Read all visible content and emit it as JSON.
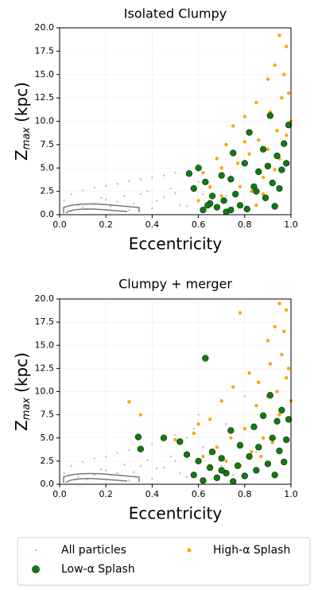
{
  "chart_data": [
    {
      "type": "scatter",
      "title": "Isolated Clumpy",
      "x_label": "Eccentricity",
      "y_label": {
        "main": "Z",
        "sub": "max",
        "unit": "(kpc)"
      },
      "xlim": [
        0,
        1
      ],
      "xticks": [
        {
          "value": 0,
          "label": "0.0"
        },
        0.2,
        0.4,
        0.6,
        0.8,
        {
          "value": 1,
          "label": "1.0"
        }
      ],
      "ylim": [
        0,
        20
      ],
      "yticks": [
        {
          "value": 0,
          "label": "0.0"
        },
        2.5,
        {
          "value": 5,
          "label": "5.0"
        },
        7.5,
        {
          "value": 10,
          "label": "10.0"
        },
        12.5,
        {
          "value": 15,
          "label": "15.0"
        },
        17.5,
        {
          "value": 20,
          "label": "20.0"
        }
      ],
      "grid": true,
      "series": [
        {
          "name": "All particles",
          "color": "#c8c8c8",
          "x": [
            0.02,
            0.05,
            0.08,
            0.1,
            0.12,
            0.15,
            0.18,
            0.2,
            0.22,
            0.25,
            0.28,
            0.3,
            0.32,
            0.35,
            0.38,
            0.4,
            0.42,
            0.45,
            0.48,
            0.5,
            0.52,
            0.55,
            0.58,
            0.6,
            0.62,
            0.65,
            0.7,
            0.72,
            0.75,
            0.05,
            0.1,
            0.15,
            0.2,
            0.25,
            0.3,
            0.35,
            0.4,
            0.45,
            0.5,
            0.55
          ],
          "y": [
            1.5,
            2.2,
            1.0,
            2.6,
            0.6,
            2.9,
            1.8,
            3.1,
            0.9,
            3.3,
            2.0,
            3.6,
            1.2,
            3.8,
            2.5,
            4.0,
            1.5,
            4.2,
            2.8,
            4.5,
            1.0,
            4.3,
            3.0,
            3.5,
            2.2,
            2.8,
            1.6,
            2.0,
            0.8,
            0.4,
            0.8,
            1.2,
            1.6,
            1.4,
            0.5,
            2.2,
            0.7,
            1.9,
            2.3,
            0.9
          ]
        },
        {
          "name": "Low-α Splash",
          "color": "#137a13",
          "x": [
            0.56,
            0.58,
            0.6,
            0.62,
            0.63,
            0.65,
            0.66,
            0.68,
            0.7,
            0.71,
            0.72,
            0.74,
            0.75,
            0.76,
            0.78,
            0.8,
            0.81,
            0.82,
            0.84,
            0.85,
            0.86,
            0.88,
            0.89,
            0.9,
            0.91,
            0.92,
            0.93,
            0.94,
            0.95,
            0.96,
            0.97,
            0.98,
            0.99,
            0.64,
            0.74
          ],
          "y": [
            4.4,
            2.8,
            5.0,
            0.5,
            3.5,
            1.2,
            2.0,
            0.8,
            4.2,
            1.5,
            0.3,
            3.8,
            6.6,
            2.2,
            1.0,
            5.5,
            0.6,
            8.8,
            3.0,
            2.5,
            4.6,
            7.0,
            1.8,
            5.2,
            10.6,
            3.4,
            0.9,
            6.3,
            2.8,
            4.8,
            7.6,
            5.5,
            9.6,
            1.0,
            0.5
          ]
        },
        {
          "name": "High-α Splash",
          "color": "#ffa500",
          "x": [
            0.6,
            0.62,
            0.65,
            0.68,
            0.7,
            0.72,
            0.74,
            0.75,
            0.77,
            0.78,
            0.8,
            0.82,
            0.83,
            0.85,
            0.86,
            0.88,
            0.9,
            0.9,
            0.91,
            0.92,
            0.93,
            0.94,
            0.95,
            0.95,
            0.96,
            0.97,
            0.98,
            0.98,
            0.99,
            1.0,
            0.85,
            0.8,
            0.7,
            0.88,
            0.93
          ],
          "y": [
            1.5,
            4.5,
            3.0,
            6.0,
            2.0,
            7.5,
            4.0,
            9.5,
            5.5,
            3.0,
            10.5,
            6.5,
            2.5,
            12.0,
            8.0,
            4.0,
            14.5,
            7.0,
            11.0,
            3.5,
            16.0,
            9.0,
            19.2,
            6.0,
            12.5,
            15.0,
            8.5,
            18.0,
            13.0,
            10.0,
            1.0,
            7.8,
            5.0,
            2.2,
            4.8
          ]
        }
      ]
    },
    {
      "type": "scatter",
      "title": "Clumpy + merger",
      "x_label": "Eccentricity",
      "y_label": {
        "main": "Z",
        "sub": "max",
        "unit": "(kpc)"
      },
      "xlim": [
        0,
        1
      ],
      "xticks": [
        {
          "value": 0,
          "label": "0.0"
        },
        0.2,
        0.4,
        0.6,
        0.8,
        {
          "value": 1,
          "label": "1.0"
        }
      ],
      "ylim": [
        0,
        20
      ],
      "yticks": [
        {
          "value": 0,
          "label": "0.0"
        },
        2.5,
        {
          "value": 5,
          "label": "5.0"
        },
        7.5,
        {
          "value": 10,
          "label": "10.0"
        },
        12.5,
        {
          "value": 15,
          "label": "15.0"
        },
        17.5,
        {
          "value": 20,
          "label": "20.0"
        }
      ],
      "grid": true,
      "series": [
        {
          "color": "#c8c8c8",
          "x": [
            0.02,
            0.05,
            0.08,
            0.1,
            0.12,
            0.15,
            0.18,
            0.2,
            0.22,
            0.25,
            0.28,
            0.3,
            0.32,
            0.35,
            0.38,
            0.4,
            0.42,
            0.45,
            0.48,
            0.5,
            0.52,
            0.55,
            0.58,
            0.6,
            0.62,
            0.65,
            0.7,
            0.72,
            0.75,
            0.8,
            0.85,
            0.15,
            0.2,
            0.25,
            0.3,
            0.35,
            0.4,
            0.45,
            0.5,
            0.55
          ],
          "y": [
            1.2,
            2.0,
            0.8,
            2.4,
            0.5,
            2.8,
            1.6,
            3.0,
            1.0,
            3.4,
            2.1,
            3.7,
            1.3,
            4.0,
            2.6,
            4.4,
            1.7,
            4.8,
            3.0,
            5.3,
            1.2,
            5.0,
            6.0,
            7.5,
            4.0,
            3.2,
            2.0,
            6.5,
            1.0,
            9.5,
            3.5,
            1.0,
            1.5,
            1.2,
            0.4,
            2.0,
            0.6,
            1.8,
            2.5,
            0.8
          ]
        },
        {
          "color": "#137a13",
          "x": [
            0.34,
            0.35,
            0.45,
            0.52,
            0.55,
            0.58,
            0.6,
            0.62,
            0.63,
            0.65,
            0.66,
            0.68,
            0.7,
            0.72,
            0.74,
            0.75,
            0.77,
            0.78,
            0.8,
            0.82,
            0.84,
            0.85,
            0.86,
            0.88,
            0.9,
            0.91,
            0.92,
            0.93,
            0.94,
            0.95,
            0.96,
            0.97,
            0.98,
            0.99,
            0.7
          ],
          "y": [
            5.1,
            3.8,
            5.0,
            4.6,
            3.2,
            1.0,
            2.5,
            0.4,
            13.6,
            1.8,
            3.5,
            0.7,
            2.8,
            1.2,
            5.8,
            0.3,
            2.0,
            4.2,
            0.9,
            3.0,
            6.2,
            1.5,
            4.0,
            7.4,
            2.2,
            9.6,
            5.0,
            1.0,
            6.8,
            3.6,
            8.0,
            2.4,
            4.8,
            7.0,
            1.5
          ]
        },
        {
          "color": "#ffa500",
          "x": [
            0.3,
            0.35,
            0.5,
            0.58,
            0.6,
            0.62,
            0.65,
            0.68,
            0.7,
            0.72,
            0.74,
            0.75,
            0.78,
            0.8,
            0.82,
            0.83,
            0.85,
            0.86,
            0.88,
            0.9,
            0.9,
            0.91,
            0.92,
            0.93,
            0.94,
            0.95,
            0.95,
            0.96,
            0.97,
            0.98,
            0.98,
            0.99,
            1.0,
            0.78,
            0.87
          ],
          "y": [
            8.9,
            7.5,
            4.8,
            5.5,
            6.5,
            3.0,
            7.0,
            4.0,
            9.0,
            2.5,
            5.0,
            10.5,
            18.5,
            6.0,
            12.0,
            3.5,
            8.5,
            11.0,
            5.0,
            15.5,
            9.5,
            13.0,
            4.5,
            17.0,
            10.0,
            19.5,
            7.5,
            14.0,
            16.5,
            11.5,
            18.8,
            12.5,
            9.0,
            2.0,
            3.0
          ]
        }
      ]
    }
  ]
}
